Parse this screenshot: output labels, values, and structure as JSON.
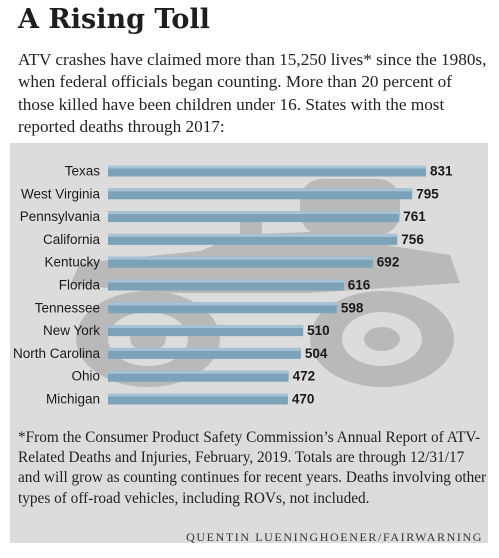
{
  "header": {
    "title": "A Rising Toll",
    "intro": "ATV crashes have claimed more than 15,250 lives*  since the 1980s, when federal officials began counting. More than 20 percent of those killed have been children under 16. States with the most reported deaths through  2017:"
  },
  "chart_data": {
    "type": "bar",
    "orientation": "horizontal",
    "categories": [
      "Texas",
      "West Virginia",
      "Pennsylvania",
      "California",
      "Kentucky",
      "Florida",
      "Tennessee",
      "New York",
      "North Carolina",
      "Ohio",
      "Michigan"
    ],
    "values": [
      831,
      795,
      761,
      756,
      692,
      616,
      598,
      510,
      504,
      472,
      470
    ],
    "data_labels": [
      "831",
      "795",
      "761",
      "756",
      "692",
      "616",
      "598",
      "510",
      "504",
      "472",
      "470"
    ],
    "title": "",
    "xlabel": "",
    "ylabel": "",
    "xlim": [
      0,
      831
    ],
    "grid": false,
    "legend": "none",
    "background_graphic": "atv-silhouette",
    "colors": {
      "bar": "#7ba2b8",
      "bar_highlight": "#a5c3d4",
      "panel": "#dcdcdc",
      "silhouette": "#b9b9b9"
    }
  },
  "footer": {
    "footnote": "*From the Consumer Product Safety Commission’s Annual Report of ATV-Related Deaths and Injuries, February, 2019. Totals are through 12/31/17 and will grow as counting continues for recent years. Deaths involving other types of off-road vehicles, including ROVs, not included.",
    "credit": "QUENTIN LUENINGHOENER/FAIRWARNING"
  }
}
